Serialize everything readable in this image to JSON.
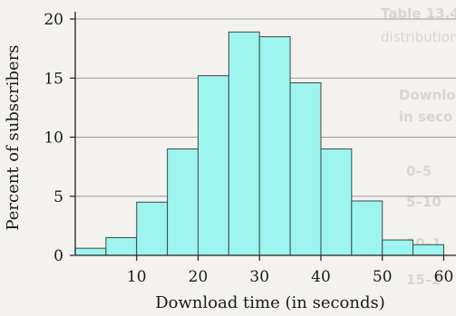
{
  "chart_data": {
    "type": "bar",
    "xlabel": "Download time (in seconds)",
    "ylabel": "Percent of subscribers",
    "ylim": [
      0,
      20
    ],
    "xlim": [
      0,
      62
    ],
    "xticks": [
      10,
      20,
      30,
      40,
      50,
      60
    ],
    "yticks": [
      0,
      5,
      10,
      15,
      20
    ],
    "grid": "horizontal",
    "bins": [
      {
        "from": 0,
        "to": 5,
        "value": 0.6
      },
      {
        "from": 5,
        "to": 10,
        "value": 1.5
      },
      {
        "from": 10,
        "to": 15,
        "value": 4.5
      },
      {
        "from": 15,
        "to": 20,
        "value": 9.0
      },
      {
        "from": 20,
        "to": 25,
        "value": 15.2
      },
      {
        "from": 25,
        "to": 30,
        "value": 18.9
      },
      {
        "from": 30,
        "to": 35,
        "value": 18.5
      },
      {
        "from": 35,
        "to": 40,
        "value": 14.6
      },
      {
        "from": 40,
        "to": 45,
        "value": 9.0
      },
      {
        "from": 45,
        "to": 50,
        "value": 4.6
      },
      {
        "from": 50,
        "to": 55,
        "value": 1.3
      },
      {
        "from": 55,
        "to": 60,
        "value": 0.9
      }
    ],
    "colors": {
      "bar": "#9ef4ee",
      "bar_stroke": "#3a4a4a",
      "grid": "#9a9a9a",
      "axis": "#222222",
      "text": "#1a1a1a"
    }
  },
  "background_text": [
    "Table 13.4",
    "distribution",
    "Downlo",
    "in seco",
    "0–5",
    "5–10",
    "10–1",
    "15–2"
  ]
}
